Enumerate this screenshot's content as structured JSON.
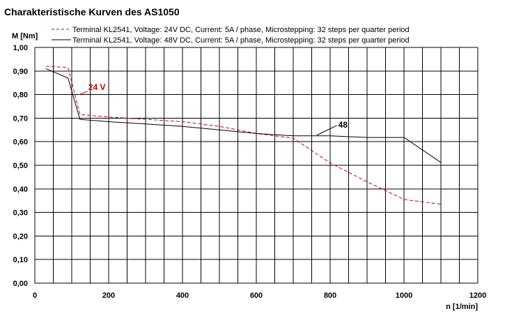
{
  "chart_data": {
    "type": "line",
    "title": "Charakteristische Kurven des AS1050",
    "ylabel": "M [Nm]",
    "xlabel": "n [1/min]",
    "xlim": [
      0,
      1200
    ],
    "ylim": [
      0,
      1.0
    ],
    "x_ticks": [
      "0",
      "200",
      "400",
      "600",
      "800",
      "1000",
      "1200"
    ],
    "y_ticks": [
      "0,00",
      "0,10",
      "0,20",
      "0,30",
      "0,40",
      "0,50",
      "0,60",
      "0,70",
      "0,80",
      "0,90",
      "1,00"
    ],
    "grid": true,
    "x_grid_step": 50,
    "y_grid_step": 0.1,
    "legend_position": "top",
    "series": [
      {
        "name": "Terminal KL2541, Voltage: 24V DC, Current: 5A / phase, Microstepping: 32 steps per quarter period",
        "color": "#cc0000",
        "style": "dashed",
        "x": [
          30,
          90,
          122,
          200,
          300,
          400,
          500,
          600,
          700,
          800,
          900,
          1000,
          1100
        ],
        "y": [
          0.92,
          0.915,
          0.715,
          0.705,
          0.695,
          0.685,
          0.665,
          0.635,
          0.615,
          0.51,
          0.43,
          0.355,
          0.335
        ]
      },
      {
        "name": "Terminal KL2541, Voltage: 48V DC, Current: 5A / phase, Microstepping: 32 steps per quarter period",
        "color": "#000000",
        "style": "solid",
        "x": [
          30,
          90,
          122,
          200,
          300,
          400,
          500,
          600,
          700,
          760,
          800,
          900,
          1000,
          1100
        ],
        "y": [
          0.91,
          0.87,
          0.695,
          0.685,
          0.675,
          0.665,
          0.65,
          0.635,
          0.625,
          0.625,
          0.625,
          0.618,
          0.618,
          0.512
        ]
      }
    ],
    "annotations": [
      {
        "text": "24 V",
        "color": "#cc0000",
        "x": 145,
        "y": 0.82
      },
      {
        "text": "48",
        "color": "#000000",
        "x": 822,
        "y": 0.66
      }
    ]
  }
}
